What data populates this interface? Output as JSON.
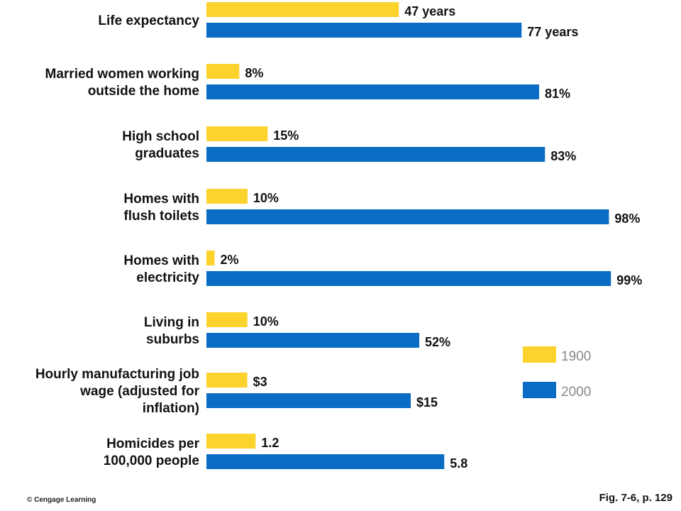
{
  "chart_data": {
    "type": "bar",
    "orientation": "horizontal",
    "categories": [
      [
        "Life expectancy"
      ],
      [
        "Married women working",
        "outside the home"
      ],
      [
        "High school",
        "graduates"
      ],
      [
        "Homes with",
        "flush toilets"
      ],
      [
        "Homes with",
        "electricity"
      ],
      [
        "Living in",
        "suburbs"
      ],
      [
        "Hourly manufacturing job",
        "wage (adjusted for",
        "inflation)"
      ],
      [
        "Homicides per",
        "100,000 people"
      ]
    ],
    "series": [
      {
        "name": "1900",
        "color": "#FCD22C",
        "values": [
          47,
          8,
          15,
          10,
          2,
          10,
          3,
          1.2
        ],
        "labels": [
          "47 years",
          "8%",
          "15%",
          "10%",
          "2%",
          "10%",
          "$3",
          "1.2"
        ]
      },
      {
        "name": "2000",
        "color": "#0A6CC4",
        "values": [
          77,
          81,
          83,
          98,
          99,
          52,
          15,
          5.8
        ],
        "labels": [
          "77 years",
          "81%",
          "83%",
          "98%",
          "99%",
          "52%",
          "$15",
          "5.8"
        ]
      }
    ],
    "legend": {
      "position": "right"
    },
    "grid": false
  },
  "footer": {
    "copyright": "© Cengage Learning",
    "figure_ref": "Fig. 7-6, p. 129"
  }
}
